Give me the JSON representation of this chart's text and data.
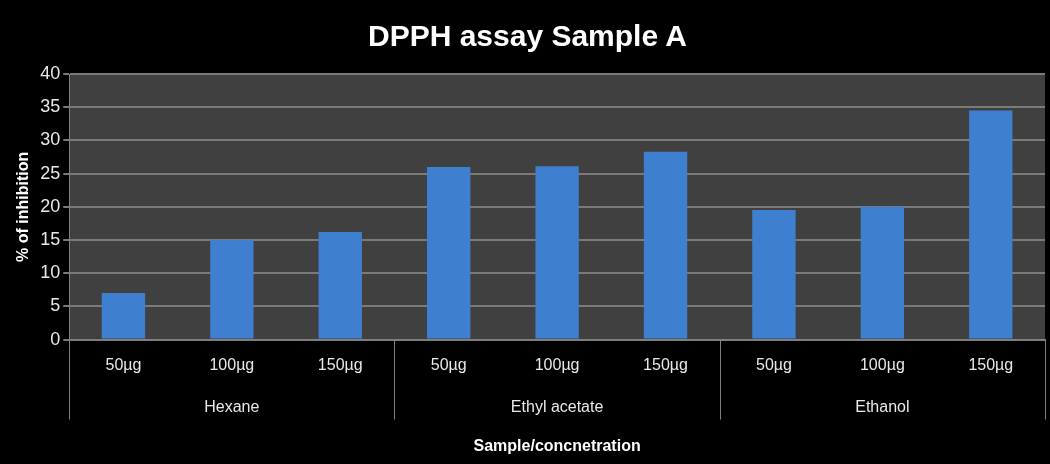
{
  "chart_data": {
    "type": "bar",
    "title": "DPPH assay Sample A",
    "xlabel": "Sample/concnetration",
    "ylabel": "% of inhibition",
    "categories": [
      "50µg",
      "100µg",
      "150µg",
      "50µg",
      "100µg",
      "150µg",
      "50µg",
      "100µg",
      "150µg"
    ],
    "values": [
      7,
      15,
      16.2,
      26,
      26.1,
      28.3,
      19.5,
      20,
      34.5
    ],
    "color": "#3f7fcf",
    "annotations": [
      "Hexane",
      "Ethyl acetate",
      "Ethanol"
    ],
    "ylim": [
      0,
      40
    ],
    "yticks": [
      0,
      5,
      10,
      15,
      20,
      25,
      30,
      35,
      40
    ],
    "grid": "y"
  }
}
